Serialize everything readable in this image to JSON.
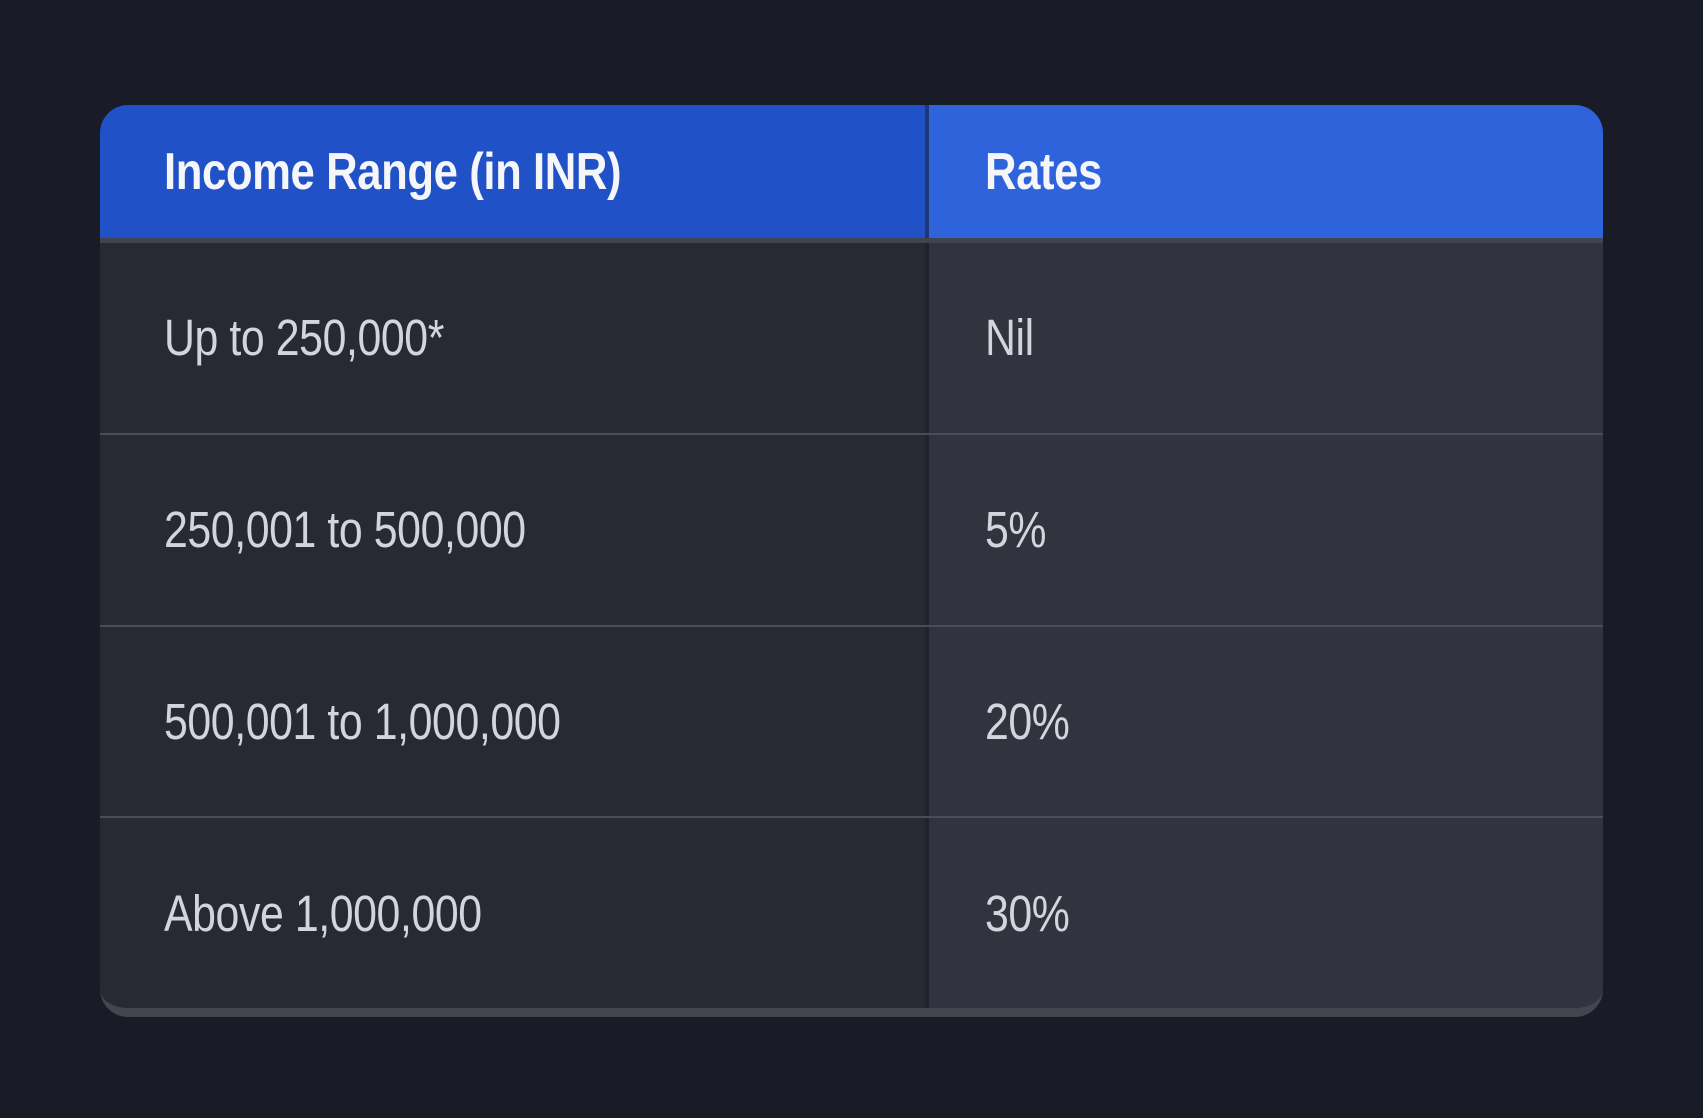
{
  "chart_data": {
    "type": "table",
    "columns": [
      "Income Range (in INR)",
      "Rates"
    ],
    "rows": [
      [
        "Up to 250,000*",
        "Nil"
      ],
      [
        "250,001 to 500,000",
        "5%"
      ],
      [
        "500,001 to 1,000,000",
        "20%"
      ],
      [
        "Above 1,000,000",
        "30%"
      ]
    ],
    "layout_hints": {
      "header_fill": "two-tone blue",
      "body_fill": "two-tone dark slate",
      "theme": "dark"
    }
  },
  "colors": {
    "page_background": "#191C26",
    "header_left": "#2051C6",
    "header_right": "#2E63DC",
    "header_text": "#F5F6FA",
    "body_left": "#272A33",
    "body_right": "#31343E",
    "body_text": "#D3D5DC",
    "divider_header": "#414450",
    "divider_row": "#4A4D58",
    "column_divider": "#20242E",
    "bottom_edge": "#43464F"
  }
}
